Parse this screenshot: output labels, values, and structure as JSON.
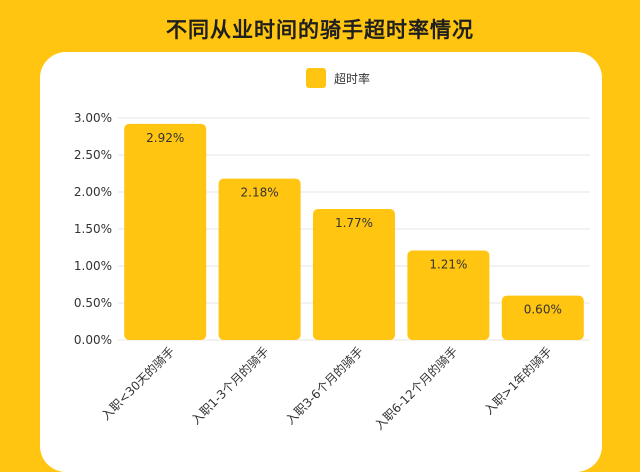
{
  "chart_data": {
    "type": "bar",
    "title": "不同从业时间的骑手超时率情况",
    "categories": [
      "入职<30天的骑手",
      "入职1-3个月的骑手",
      "入职3-6个月的骑手",
      "入职6-12个月的骑手",
      "入职>1年的骑手"
    ],
    "series": [
      {
        "name": "超时率",
        "values": [
          2.92,
          2.18,
          1.77,
          1.21,
          0.6
        ]
      }
    ],
    "value_labels": [
      "2.92%",
      "2.18%",
      "1.77%",
      "1.21%",
      "0.60%"
    ],
    "yticks": [
      "0.00%",
      "0.50%",
      "1.00%",
      "1.50%",
      "2.00%",
      "2.50%",
      "3.00%"
    ],
    "ylim": [
      0,
      3.0
    ],
    "xlabel": "",
    "ylabel": "",
    "grid": true,
    "legend": "top-center",
    "colors": {
      "bar": "#FFC510",
      "background": "#FFC510",
      "card": "#FFFFFF",
      "grid": "#E6E6E6",
      "text": "#333333"
    }
  }
}
